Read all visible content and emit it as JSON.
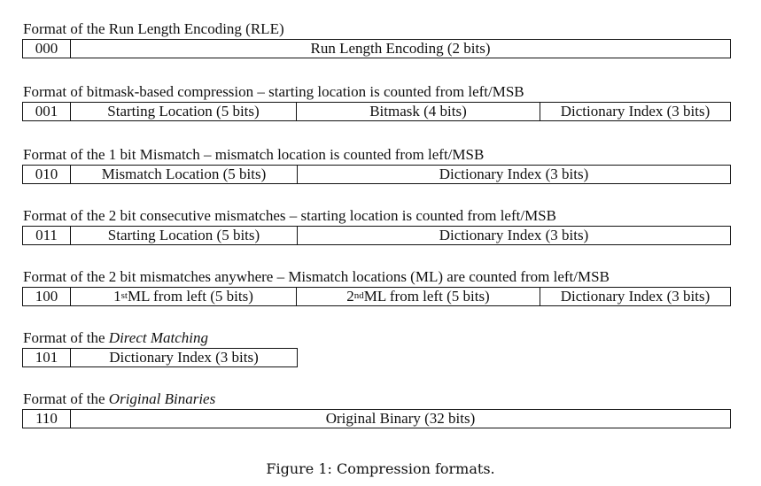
{
  "formats": [
    {
      "title_pre": "Format of the Run Length Encoding (RLE)",
      "title_em": "",
      "fields": [
        {
          "pre": "000"
        },
        {
          "pre": "Run Length Encoding (2 bits)"
        }
      ]
    },
    {
      "title_pre": "Format of bitmask-based compression – starting location is counted from left/MSB",
      "title_em": "",
      "fields": [
        {
          "pre": "001"
        },
        {
          "pre": "Starting Location (5 bits)"
        },
        {
          "pre": "Bitmask (4 bits)"
        },
        {
          "pre": "Dictionary Index (3 bits)"
        }
      ]
    },
    {
      "title_pre": "Format of the 1 bit Mismatch – mismatch location is counted from left/MSB",
      "title_em": "",
      "fields": [
        {
          "pre": "010"
        },
        {
          "pre": "Mismatch Location (5 bits)"
        },
        {
          "pre": "Dictionary Index (3 bits)"
        }
      ]
    },
    {
      "title_pre": "Format of the 2 bit consecutive mismatches – starting location is counted from left/MSB",
      "title_em": "",
      "fields": [
        {
          "pre": "011"
        },
        {
          "pre": "Starting Location (5 bits)"
        },
        {
          "pre": "Dictionary Index (3 bits)"
        }
      ]
    },
    {
      "title_pre": "Format of the 2 bit mismatches anywhere – Mismatch locations (ML) are counted from left/MSB",
      "title_em": "",
      "fields": [
        {
          "pre": "100"
        },
        {
          "pre": "1",
          "sup": "st",
          "post": " ML from left (5 bits)"
        },
        {
          "pre": "2",
          "sup": "nd",
          "post": " ML from left (5 bits)"
        },
        {
          "pre": "Dictionary Index (3 bits)"
        }
      ]
    },
    {
      "title_pre": "Format of the ",
      "title_em": "Direct Matching",
      "fields": [
        {
          "pre": "101"
        },
        {
          "pre": "Dictionary Index (3 bits)"
        }
      ]
    },
    {
      "title_pre": "Format of the ",
      "title_em": "Original Binaries",
      "fields": [
        {
          "pre": "110"
        },
        {
          "pre": "Original Binary (32 bits)"
        }
      ]
    }
  ],
  "caption": "Figure 1: Compression formats."
}
